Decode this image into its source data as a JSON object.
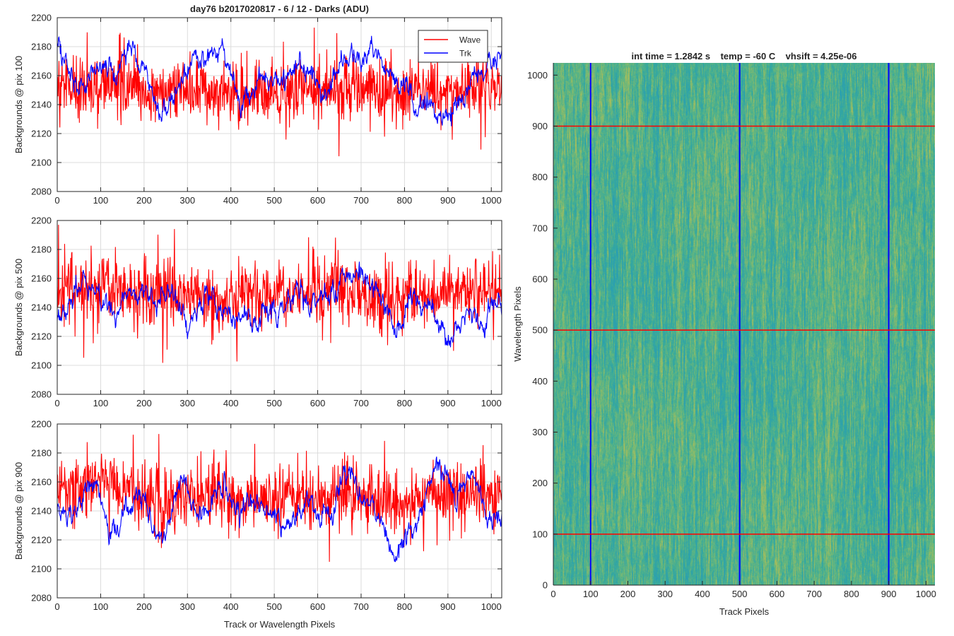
{
  "figure": {
    "title": "day76 b2017020817 - 6 / 12 - Darks (ADU)"
  },
  "chart_data": [
    {
      "id": "pix100",
      "type": "line",
      "title": "day76 b2017020817 - 6 / 12 - Darks (ADU)",
      "xlabel": "",
      "ylabel": "Backgrounds @ pix 100",
      "xlim": [
        0,
        1024
      ],
      "ylim": [
        2080,
        2200
      ],
      "xticks": [
        0,
        100,
        200,
        300,
        400,
        500,
        600,
        700,
        800,
        900,
        1000
      ],
      "yticks": [
        2080,
        2100,
        2120,
        2140,
        2160,
        2180,
        2200
      ],
      "grid": true,
      "legend": {
        "position": "top-right",
        "entries": [
          "Wave",
          "Trk"
        ]
      },
      "series": [
        {
          "name": "Wave",
          "color": "#ff0000",
          "mean": 2150,
          "noise": 11,
          "x": [
            0,
            40,
            80,
            120,
            160,
            200,
            240,
            280,
            320,
            360,
            400,
            440,
            480,
            520,
            560,
            600,
            640,
            680,
            720,
            760,
            800,
            840,
            880,
            920,
            960,
            1000,
            1024
          ],
          "y": [
            2152,
            2150,
            2152,
            2156,
            2153,
            2150,
            2148,
            2151,
            2147,
            2149,
            2148,
            2150,
            2149,
            2151,
            2150,
            2150,
            2151,
            2152,
            2150,
            2149,
            2150,
            2151,
            2150,
            2150,
            2152,
            2150,
            2150
          ]
        },
        {
          "name": "Trk",
          "color": "#0000ff",
          "mean": 2158,
          "noise": 4,
          "x": [
            0,
            20,
            40,
            60,
            80,
            100,
            120,
            140,
            160,
            180,
            200,
            220,
            240,
            260,
            280,
            300,
            320,
            340,
            360,
            380,
            400,
            420,
            440,
            460,
            480,
            500,
            520,
            540,
            560,
            580,
            600,
            620,
            640,
            660,
            680,
            700,
            720,
            740,
            760,
            780,
            800,
            820,
            840,
            860,
            880,
            900,
            920,
            940,
            960,
            980,
            1000,
            1024
          ],
          "y": [
            2178,
            2172,
            2155,
            2150,
            2162,
            2168,
            2166,
            2158,
            2182,
            2178,
            2168,
            2150,
            2128,
            2142,
            2150,
            2165,
            2172,
            2165,
            2176,
            2180,
            2160,
            2140,
            2148,
            2155,
            2162,
            2158,
            2160,
            2165,
            2168,
            2165,
            2155,
            2150,
            2160,
            2170,
            2175,
            2168,
            2180,
            2178,
            2165,
            2155,
            2152,
            2142,
            2138,
            2142,
            2135,
            2130,
            2140,
            2150,
            2162,
            2160,
            2168,
            2170
          ]
        }
      ]
    },
    {
      "id": "pix500",
      "type": "line",
      "title": "",
      "xlabel": "",
      "ylabel": "Backgrounds @ pix 500",
      "xlim": [
        0,
        1024
      ],
      "ylim": [
        2080,
        2200
      ],
      "xticks": [
        0,
        100,
        200,
        300,
        400,
        500,
        600,
        700,
        800,
        900,
        1000
      ],
      "yticks": [
        2080,
        2100,
        2120,
        2140,
        2160,
        2180,
        2200
      ],
      "grid": true,
      "series": [
        {
          "name": "Wave",
          "color": "#ff0000",
          "mean": 2150,
          "noise": 11,
          "x": [
            0,
            50,
            100,
            150,
            200,
            250,
            300,
            350,
            400,
            450,
            500,
            550,
            600,
            650,
            700,
            750,
            800,
            850,
            900,
            950,
            1000,
            1024
          ],
          "y": [
            2150,
            2153,
            2155,
            2152,
            2150,
            2148,
            2148,
            2147,
            2148,
            2150,
            2149,
            2150,
            2150,
            2152,
            2150,
            2147,
            2146,
            2148,
            2150,
            2151,
            2150,
            2150
          ]
        },
        {
          "name": "Trk",
          "color": "#0000ff",
          "mean": 2145,
          "noise": 4,
          "x": [
            0,
            20,
            40,
            60,
            80,
            100,
            120,
            140,
            160,
            180,
            200,
            220,
            240,
            260,
            280,
            300,
            320,
            340,
            360,
            380,
            400,
            420,
            440,
            460,
            480,
            500,
            520,
            540,
            560,
            580,
            600,
            620,
            640,
            660,
            680,
            700,
            720,
            740,
            760,
            780,
            800,
            820,
            840,
            860,
            880,
            900,
            920,
            940,
            960,
            980,
            1000,
            1024
          ],
          "y": [
            2130,
            2140,
            2150,
            2158,
            2155,
            2148,
            2140,
            2138,
            2148,
            2155,
            2150,
            2145,
            2145,
            2158,
            2138,
            2125,
            2135,
            2148,
            2145,
            2140,
            2138,
            2132,
            2135,
            2125,
            2140,
            2135,
            2138,
            2148,
            2152,
            2142,
            2150,
            2152,
            2148,
            2165,
            2165,
            2160,
            2158,
            2150,
            2140,
            2120,
            2135,
            2150,
            2138,
            2145,
            2130,
            2110,
            2128,
            2138,
            2135,
            2120,
            2150,
            2140
          ]
        }
      ]
    },
    {
      "id": "pix900",
      "type": "line",
      "title": "",
      "xlabel": "Track or Wavelength Pixels",
      "ylabel": "Backgrounds @ pix 900",
      "xlim": [
        0,
        1024
      ],
      "ylim": [
        2080,
        2200
      ],
      "xticks": [
        0,
        100,
        200,
        300,
        400,
        500,
        600,
        700,
        800,
        900,
        1000
      ],
      "yticks": [
        2080,
        2100,
        2120,
        2140,
        2160,
        2180,
        2200
      ],
      "grid": true,
      "series": [
        {
          "name": "Wave",
          "color": "#ff0000",
          "mean": 2150,
          "noise": 11,
          "x": [
            0,
            50,
            100,
            150,
            200,
            250,
            300,
            350,
            400,
            450,
            500,
            550,
            600,
            650,
            700,
            750,
            800,
            850,
            900,
            950,
            1000,
            1024
          ],
          "y": [
            2152,
            2158,
            2162,
            2152,
            2150,
            2148,
            2148,
            2150,
            2150,
            2149,
            2148,
            2150,
            2149,
            2150,
            2150,
            2148,
            2148,
            2150,
            2150,
            2150,
            2151,
            2150
          ]
        },
        {
          "name": "Trk",
          "color": "#0000ff",
          "mean": 2145,
          "noise": 4,
          "x": [
            0,
            20,
            40,
            60,
            80,
            100,
            120,
            140,
            160,
            180,
            200,
            220,
            240,
            260,
            280,
            300,
            320,
            340,
            360,
            380,
            400,
            420,
            440,
            460,
            480,
            500,
            520,
            540,
            560,
            580,
            600,
            620,
            640,
            660,
            680,
            700,
            720,
            740,
            760,
            780,
            800,
            820,
            840,
            860,
            880,
            900,
            920,
            940,
            960,
            980,
            1000,
            1024
          ],
          "y": [
            2142,
            2135,
            2138,
            2150,
            2162,
            2148,
            2132,
            2125,
            2145,
            2150,
            2148,
            2130,
            2120,
            2135,
            2165,
            2155,
            2142,
            2135,
            2150,
            2155,
            2148,
            2135,
            2148,
            2150,
            2138,
            2135,
            2128,
            2135,
            2140,
            2145,
            2138,
            2135,
            2145,
            2168,
            2160,
            2150,
            2148,
            2140,
            2120,
            2108,
            2115,
            2125,
            2140,
            2165,
            2172,
            2160,
            2150,
            2158,
            2162,
            2148,
            2130,
            2140
          ]
        }
      ]
    },
    {
      "id": "map",
      "type": "heatmap",
      "title": "int time = 1.2842 s    temp = -60 C    vhsift = 4.25e-06",
      "xlabel": "Track Pixels",
      "ylabel": "Wavelength Pixels",
      "xlim": [
        0,
        1024
      ],
      "ylim": [
        0,
        1024
      ],
      "xticks": [
        0,
        100,
        200,
        300,
        400,
        500,
        600,
        700,
        800,
        900,
        1000
      ],
      "yticks": [
        0,
        100,
        200,
        300,
        400,
        500,
        600,
        700,
        800,
        900,
        1000
      ],
      "colormap": [
        "#2a9fb2",
        "#3aab9a",
        "#6bb87a",
        "#a8bd5c"
      ],
      "vertical_lines": {
        "color": "#0000ff",
        "x": [
          100,
          500,
          900
        ]
      },
      "horizontal_lines": {
        "color": "#ff0000",
        "y": [
          100,
          500,
          900
        ]
      }
    }
  ]
}
